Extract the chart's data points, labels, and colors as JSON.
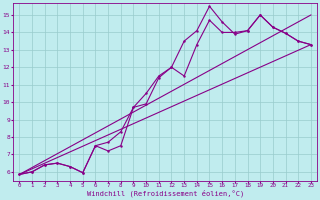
{
  "xlabel": "Windchill (Refroidissement éolien,°C)",
  "xlim": [
    -0.5,
    23.5
  ],
  "ylim": [
    5.5,
    15.7
  ],
  "xticks": [
    0,
    1,
    2,
    3,
    4,
    5,
    6,
    7,
    8,
    9,
    10,
    11,
    12,
    13,
    14,
    15,
    16,
    17,
    18,
    19,
    20,
    21,
    22,
    23
  ],
  "yticks": [
    6,
    7,
    8,
    9,
    10,
    11,
    12,
    13,
    14,
    15
  ],
  "bg_color": "#c0ecee",
  "grid_color": "#99cccc",
  "line_color": "#880088",
  "line1_x": [
    0,
    1,
    2,
    3,
    4,
    5,
    6,
    7,
    8,
    9,
    10,
    11,
    12,
    13,
    14,
    15,
    16,
    17,
    18,
    19,
    20,
    21,
    22,
    23
  ],
  "line1_y": [
    5.85,
    6.0,
    6.4,
    6.5,
    6.3,
    5.95,
    7.5,
    7.2,
    7.5,
    9.7,
    9.9,
    11.4,
    12.0,
    13.5,
    14.1,
    15.5,
    14.6,
    13.9,
    14.1,
    15.0,
    14.3,
    13.95,
    13.5,
    13.3
  ],
  "line2_x": [
    0,
    1,
    2,
    3,
    4,
    5,
    6,
    7,
    8,
    9,
    10,
    11,
    12,
    13,
    14,
    15,
    16,
    17,
    18,
    19,
    20,
    21,
    22,
    23
  ],
  "line2_y": [
    5.85,
    6.0,
    6.4,
    6.5,
    6.3,
    5.95,
    7.5,
    7.7,
    8.3,
    9.7,
    10.5,
    11.5,
    12.0,
    11.5,
    13.3,
    14.7,
    14.0,
    14.0,
    14.1,
    15.0,
    14.3,
    13.95,
    13.5,
    13.3
  ],
  "line3_x": [
    0,
    23
  ],
  "line3_y": [
    5.85,
    13.3
  ],
  "line4_x": [
    0,
    23
  ],
  "line4_y": [
    5.85,
    15.0
  ]
}
